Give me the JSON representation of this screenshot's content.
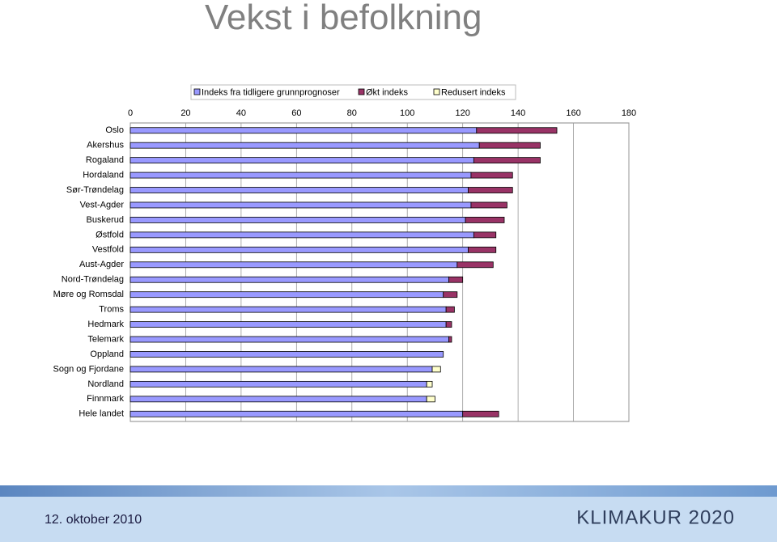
{
  "chart_data": {
    "type": "stacked-hbar",
    "title": "Vekst i befolkning",
    "categories": [
      "Oslo",
      "Akershus",
      "Rogaland",
      "Hordaland",
      "Sør-Trøndelag",
      "Vest-Agder",
      "Buskerud",
      "Østfold",
      "Vestfold",
      "Aust-Agder",
      "Nord-Trøndelag",
      "Møre og Romsdal",
      "Troms",
      "Hedmark",
      "Telemark",
      "Oppland",
      "Sogn og Fjordane",
      "Nordland",
      "Finnmark",
      "Hele landet"
    ],
    "series": [
      {
        "name": "Indeks fra tidligere grunnprognoser",
        "color": "#9999ff",
        "values": [
          125,
          126,
          124,
          123,
          122,
          123,
          121,
          124,
          122,
          118,
          115,
          113,
          114,
          114,
          115,
          113,
          109,
          107,
          107,
          120
        ]
      },
      {
        "name": "Økt indeks",
        "color": "#993366",
        "values": [
          29,
          22,
          24,
          15,
          16,
          13,
          14,
          8,
          10,
          13,
          5,
          5,
          3,
          2,
          1,
          null,
          null,
          null,
          null,
          13
        ]
      },
      {
        "name": "Redusert indeks",
        "color": "#ffffcc",
        "values": [
          null,
          null,
          null,
          null,
          null,
          null,
          null,
          null,
          null,
          null,
          null,
          null,
          null,
          null,
          null,
          null,
          3,
          2,
          3,
          null
        ]
      }
    ],
    "xlim": [
      0,
      180
    ],
    "xticks": [
      0,
      20,
      40,
      60,
      80,
      100,
      120,
      140,
      160,
      180
    ],
    "grid": true,
    "legend": "top"
  },
  "footer": {
    "date": "12. oktober 2010",
    "brand": "KLIMAKUR 2020"
  }
}
